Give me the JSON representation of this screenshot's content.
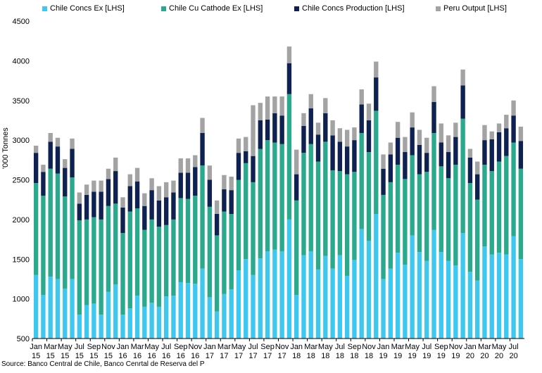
{
  "chart_data": {
    "type": "bar",
    "stacked": true,
    "ylabel": "'000 Tonnes",
    "ylim": [
      500,
      4500
    ],
    "yticks": [
      500,
      1000,
      1500,
      2000,
      2500,
      3000,
      3500,
      4000,
      4500
    ],
    "grid": false,
    "legend_position": "top",
    "source": "Source: Banco Central de Chile, Banco Cenrtal de Reserva del P",
    "tick_labels": [
      {
        "month": "Jan",
        "year": "15"
      },
      {
        "month": "Mar",
        "year": "15"
      },
      {
        "month": "May",
        "year": "15"
      },
      {
        "month": "Jul",
        "year": "15"
      },
      {
        "month": "Sep",
        "year": "15"
      },
      {
        "month": "Nov",
        "year": "15"
      },
      {
        "month": "Jan",
        "year": "16"
      },
      {
        "month": "Mar",
        "year": "16"
      },
      {
        "month": "May",
        "year": "16"
      },
      {
        "month": "Jul",
        "year": "16"
      },
      {
        "month": "Sep",
        "year": "16"
      },
      {
        "month": "Nov",
        "year": "16"
      },
      {
        "month": "Jan",
        "year": "17"
      },
      {
        "month": "Mar",
        "year": "17"
      },
      {
        "month": "May",
        "year": "17"
      },
      {
        "month": "Jul",
        "year": "17"
      },
      {
        "month": "Sep",
        "year": "17"
      },
      {
        "month": "Nov",
        "year": "17"
      },
      {
        "month": "Jan",
        "year": "18"
      },
      {
        "month": "Mar",
        "year": "18"
      },
      {
        "month": "May",
        "year": "18"
      },
      {
        "month": "Jul",
        "year": "18"
      },
      {
        "month": "Sep",
        "year": "18"
      },
      {
        "month": "Nov",
        "year": "18"
      },
      {
        "month": "Jan",
        "year": "19"
      },
      {
        "month": "Mar",
        "year": "19"
      },
      {
        "month": "May",
        "year": "19"
      },
      {
        "month": "Jul",
        "year": "19"
      },
      {
        "month": "Sep",
        "year": "19"
      },
      {
        "month": "Nov",
        "year": "19"
      },
      {
        "month": "Jan",
        "year": "20"
      },
      {
        "month": "Mar",
        "year": "20"
      },
      {
        "month": "May",
        "year": "20"
      },
      {
        "month": "Jul",
        "year": "20"
      }
    ],
    "categories": [
      "Jan 15",
      "Feb 15",
      "Mar 15",
      "Apr 15",
      "May 15",
      "Jun 15",
      "Jul 15",
      "Aug 15",
      "Sep 15",
      "Oct 15",
      "Nov 15",
      "Dec 15",
      "Jan 16",
      "Feb 16",
      "Mar 16",
      "Apr 16",
      "May 16",
      "Jun 16",
      "Jul 16",
      "Aug 16",
      "Sep 16",
      "Oct 16",
      "Nov 16",
      "Dec 16",
      "Jan 17",
      "Feb 17",
      "Mar 17",
      "Apr 17",
      "May 17",
      "Jun 17",
      "Jul 17",
      "Aug 17",
      "Sep 17",
      "Oct 17",
      "Nov 17",
      "Dec 17",
      "Jan 18",
      "Feb 18",
      "Mar 18",
      "Apr 18",
      "May 18",
      "Jun 18",
      "Jul 18",
      "Aug 18",
      "Sep 18",
      "Oct 18",
      "Nov 18",
      "Dec 18",
      "Jan 19",
      "Feb 19",
      "Mar 19",
      "Apr 19",
      "May 19",
      "Jun 19",
      "Jul 19",
      "Aug 19",
      "Sep 19",
      "Oct 19",
      "Nov 19",
      "Dec 19",
      "Jan 20",
      "Feb 20",
      "Mar 20",
      "Apr 20",
      "May 20",
      "Jun 20",
      "Jul 20",
      "Aug 20"
    ],
    "series": [
      {
        "name": "Chile Concs Ex [LHS]",
        "color": "#3fc8ef",
        "cumulative": [
          1300,
          1050,
          1280,
          1250,
          1130,
          1250,
          800,
          920,
          940,
          800,
          1090,
          1180,
          800,
          880,
          1040,
          900,
          950,
          900,
          1030,
          1040,
          1210,
          1200,
          1190,
          1380,
          1020,
          840,
          1060,
          1120,
          1360,
          1500,
          1300,
          1510,
          1600,
          1620,
          1600,
          2000,
          1050,
          1550,
          1600,
          1370,
          1540,
          1380,
          1550,
          1290,
          1490,
          1880,
          1730,
          2070,
          1250,
          1380,
          1580,
          1430,
          1800,
          1590,
          1480,
          1870,
          1590,
          1480,
          1420,
          1830,
          1340,
          1230,
          1660,
          1560,
          1580,
          1560,
          1790,
          1500
        ]
      },
      {
        "name": "Chile Cu Cathode Ex [LHS]",
        "color": "#2aa98c",
        "cumulative": [
          2460,
          2300,
          2640,
          2580,
          2290,
          2530,
          1990,
          2000,
          2030,
          2000,
          2170,
          2200,
          1830,
          2100,
          2140,
          1870,
          2000,
          1910,
          1930,
          2000,
          2270,
          2260,
          2300,
          2680,
          2160,
          1800,
          2100,
          2070,
          2500,
          2710,
          2470,
          2890,
          3000,
          2970,
          2950,
          3580,
          2240,
          2840,
          2950,
          2730,
          2980,
          2620,
          2610,
          2570,
          2600,
          3090,
          2850,
          3370,
          2310,
          2470,
          2690,
          2510,
          2810,
          2570,
          2600,
          3090,
          2670,
          2520,
          2690,
          3270,
          2460,
          2250,
          2690,
          2610,
          2730,
          2800,
          2970,
          2640
        ]
      },
      {
        "name": "Chile Concs Production [LHS]",
        "color": "#0e2150",
        "cumulative": [
          2840,
          2600,
          2980,
          2920,
          2650,
          2890,
          2200,
          2310,
          2350,
          2350,
          2510,
          2610,
          2150,
          2420,
          2480,
          2170,
          2370,
          2240,
          2280,
          2340,
          2590,
          2590,
          2660,
          3090,
          2500,
          2070,
          2380,
          2370,
          2840,
          2860,
          2800,
          3250,
          3260,
          3340,
          3310,
          3970,
          2570,
          3180,
          3400,
          3070,
          3340,
          3060,
          2980,
          2920,
          3000,
          3450,
          3250,
          3790,
          2640,
          2820,
          3030,
          2850,
          3160,
          2940,
          2840,
          3480,
          2970,
          2850,
          3040,
          3690,
          2780,
          2570,
          3000,
          3010,
          3100,
          3150,
          3310,
          2990
        ]
      },
      {
        "name": "Peru Output [LHS]",
        "color": "#a3a3a3",
        "cumulative": [
          2930,
          2690,
          3090,
          3030,
          2760,
          3020,
          2340,
          2440,
          2490,
          2490,
          2640,
          2780,
          2280,
          2570,
          2650,
          2330,
          2520,
          2420,
          2470,
          2490,
          2770,
          2770,
          2810,
          3280,
          2680,
          2240,
          2560,
          2540,
          3020,
          3040,
          3440,
          3470,
          3550,
          3550,
          3550,
          4180,
          2880,
          3340,
          3580,
          3220,
          3530,
          3250,
          3150,
          3130,
          3160,
          3640,
          3460,
          3990,
          2820,
          2970,
          3230,
          3040,
          3350,
          3130,
          3030,
          3680,
          3210,
          3060,
          3220,
          3890,
          2890,
          2730,
          3190,
          3110,
          3210,
          3320,
          3500,
          3170
        ]
      }
    ]
  }
}
